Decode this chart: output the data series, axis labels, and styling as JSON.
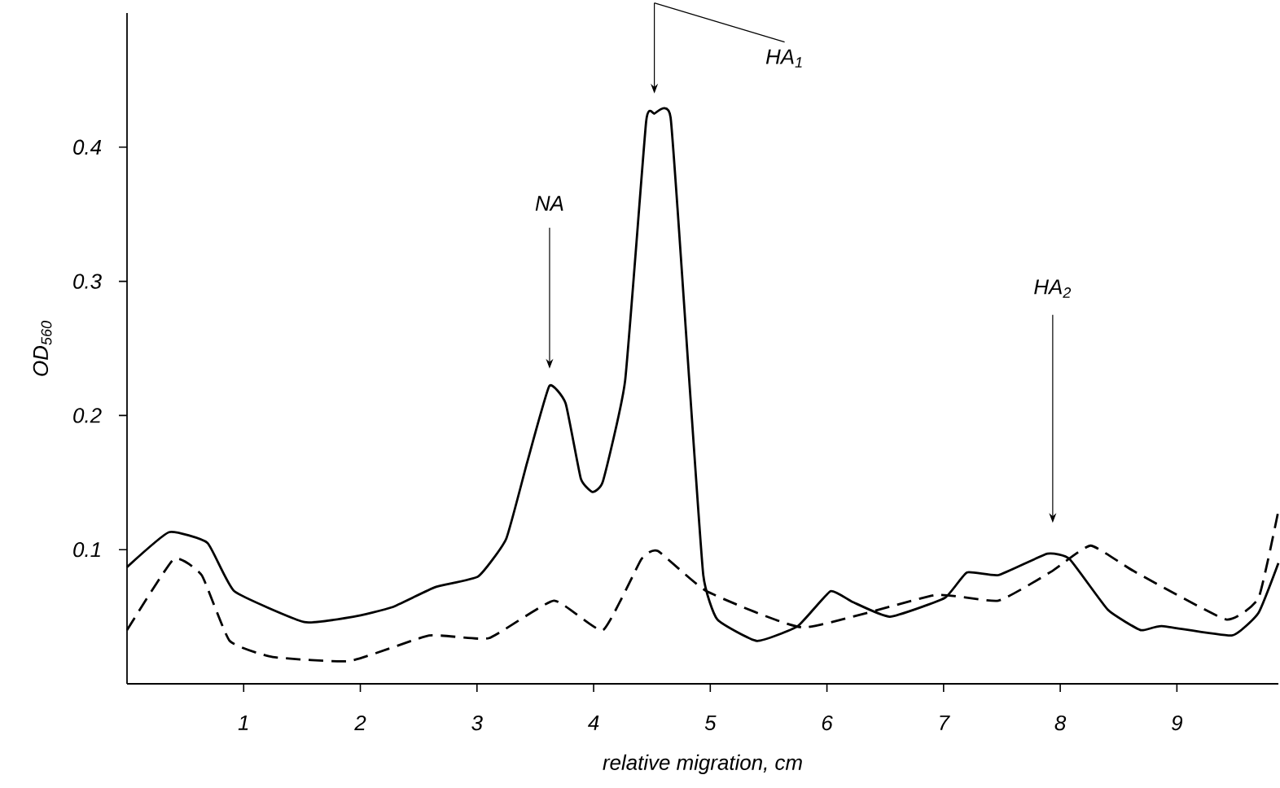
{
  "chart_data": {
    "type": "line",
    "xlabel": "relative migration, cm",
    "ylabel": "OD$_{560}$",
    "xlim": [
      0,
      9.87
    ],
    "ylim": [
      0,
      0.5
    ],
    "xticks": [
      1,
      2,
      3,
      4,
      5,
      6,
      7,
      8,
      9
    ],
    "yticks": [
      0.1,
      0.2,
      0.3,
      0.4
    ],
    "grid": false,
    "marker": "none",
    "series": [
      {
        "color": "#000000",
        "line_style": "solid",
        "x": [
          0,
          0.36,
          0.69,
          0.92,
          1.52,
          1.94,
          2.27,
          2.64,
          3.01,
          3.25,
          3.43,
          3.62,
          3.76,
          3.89,
          3.99,
          4.08,
          4.27,
          4.45,
          4.52,
          4.66,
          4.82,
          4.94,
          5.06,
          5.4,
          5.75,
          6.03,
          6.22,
          6.54,
          7.01,
          7.2,
          7.47,
          7.89,
          8.08,
          8.41,
          8.69,
          8.87,
          9.47,
          9.7,
          9.87
        ],
        "values": [
          0.087,
          0.113,
          0.105,
          0.069,
          0.046,
          0.05,
          0.057,
          0.072,
          0.08,
          0.108,
          0.165,
          0.222,
          0.209,
          0.153,
          0.143,
          0.151,
          0.226,
          0.419,
          0.425,
          0.422,
          0.226,
          0.081,
          0.048,
          0.032,
          0.043,
          0.069,
          0.061,
          0.05,
          0.064,
          0.083,
          0.081,
          0.097,
          0.093,
          0.055,
          0.04,
          0.043,
          0.036,
          0.053,
          0.09
        ]
      },
      {
        "color": "#000000",
        "line_style": "dashed",
        "x": [
          0,
          0.4,
          0.64,
          0.88,
          1.25,
          1.91,
          2.59,
          3.1,
          3.66,
          4.08,
          4.41,
          4.55,
          4.97,
          5.8,
          6.92,
          7.47,
          7.93,
          8.26,
          8.63,
          9.42,
          9.7,
          9.87
        ],
        "values": [
          0.04,
          0.093,
          0.081,
          0.032,
          0.02,
          0.017,
          0.036,
          0.034,
          0.062,
          0.04,
          0.093,
          0.099,
          0.069,
          0.042,
          0.066,
          0.062,
          0.084,
          0.103,
          0.084,
          0.048,
          0.064,
          0.129
        ]
      }
    ],
    "annotations": [
      "NA",
      "HA$_{1}$",
      "HA$_{2}$"
    ]
  }
}
